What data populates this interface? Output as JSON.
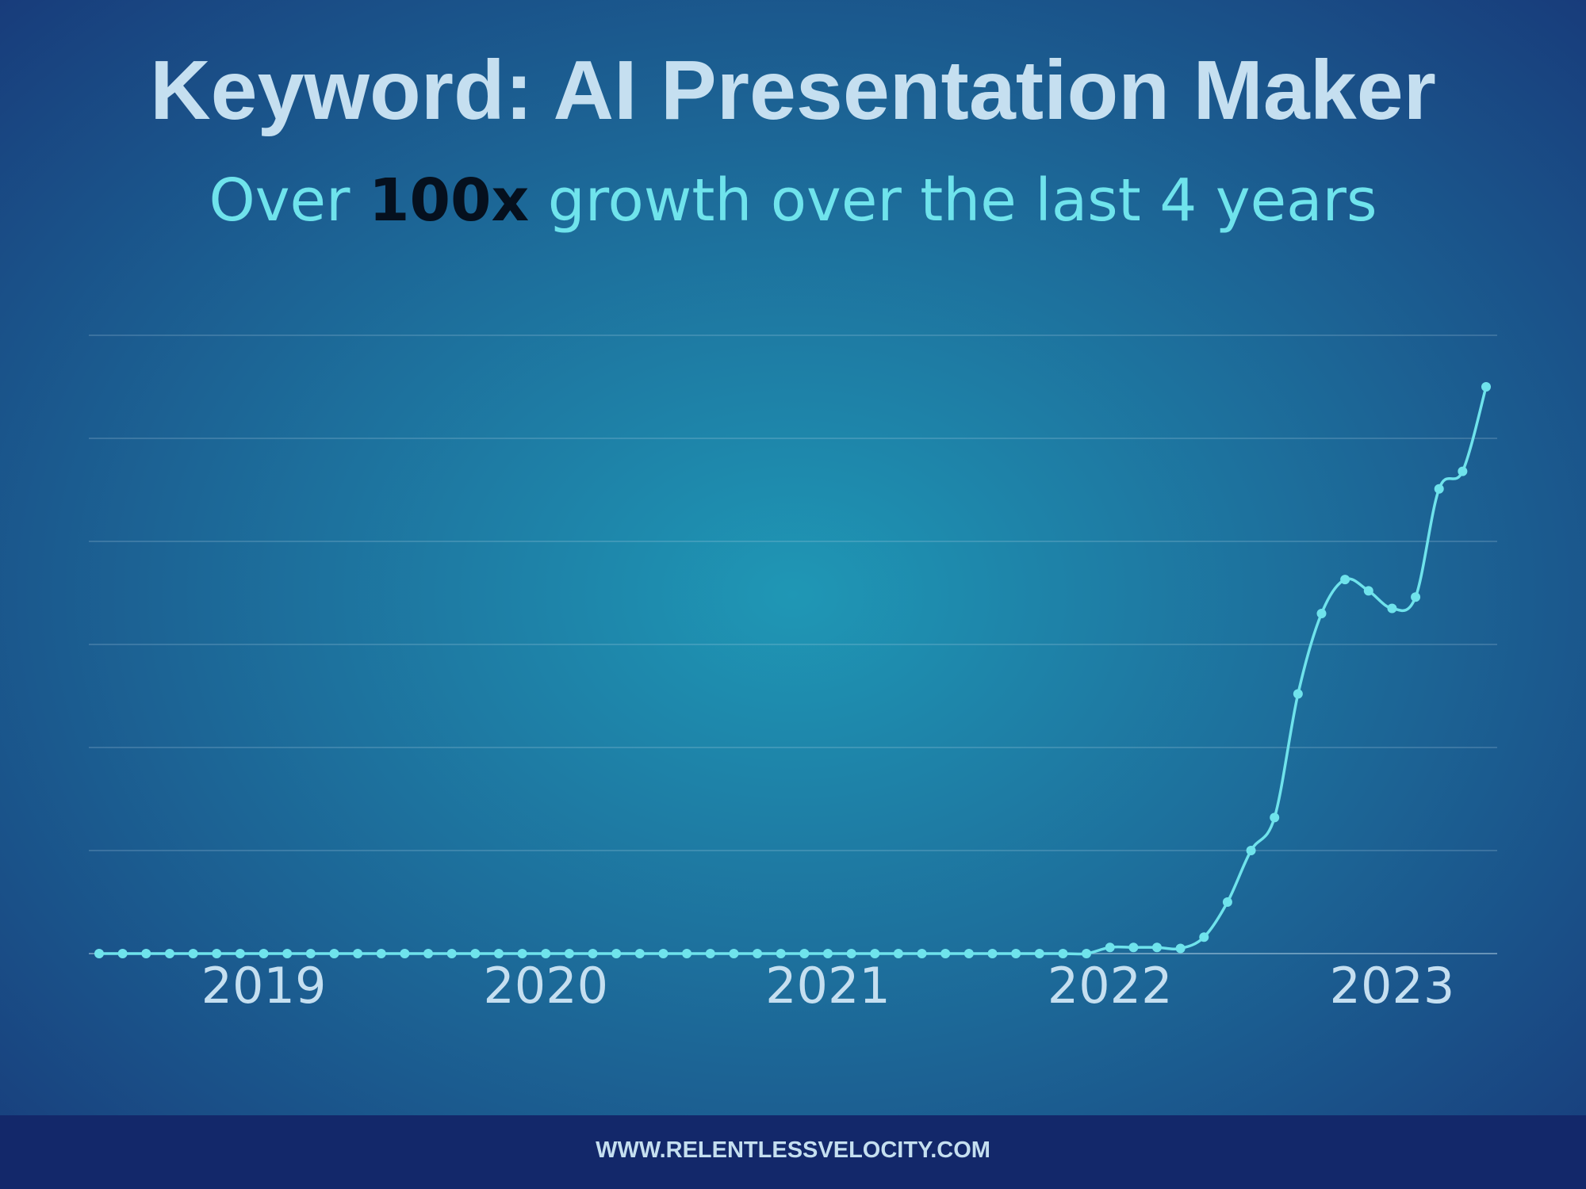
{
  "chart_data": {
    "type": "line",
    "title": "Keyword: AI Presentation Maker",
    "subtitle": {
      "before": "Over",
      "emphasis": "100x",
      "after": "growth over the last 4 years"
    },
    "categories": [
      null,
      null,
      null,
      null,
      null,
      null,
      null,
      "2019",
      null,
      null,
      null,
      null,
      null,
      null,
      null,
      null,
      null,
      null,
      null,
      "2020",
      null,
      null,
      null,
      null,
      null,
      null,
      null,
      null,
      null,
      null,
      null,
      "2021",
      null,
      null,
      null,
      null,
      null,
      null,
      null,
      null,
      null,
      null,
      null,
      "2022",
      null,
      null,
      null,
      null,
      null,
      null,
      null,
      null,
      null,
      null,
      null,
      "2023",
      null,
      null,
      null,
      null
    ],
    "series": [
      {
        "name": "AI Presentation Maker",
        "color": "#6fe3ec",
        "values": [
          0,
          0,
          0,
          0,
          0,
          0,
          0,
          0,
          0,
          0,
          0,
          0,
          0,
          0,
          0,
          0,
          0,
          0,
          0,
          0,
          0,
          0,
          0,
          0,
          0,
          0,
          0,
          0,
          0,
          0,
          0,
          0,
          0,
          0,
          0,
          0,
          0,
          0,
          0,
          0,
          0,
          0,
          0,
          0.06,
          0.06,
          0.06,
          0.05,
          0.16,
          0.5,
          1.0,
          1.32,
          2.52,
          3.3,
          3.63,
          3.52,
          3.35,
          3.46,
          4.51,
          4.68,
          5.5
        ]
      }
    ],
    "ylim": [
      0,
      6
    ],
    "yticks": [
      0,
      1,
      2,
      3,
      4,
      5,
      6
    ],
    "grid": true,
    "footer": "WWW.RELENTLESSVELOCITY.COM"
  }
}
